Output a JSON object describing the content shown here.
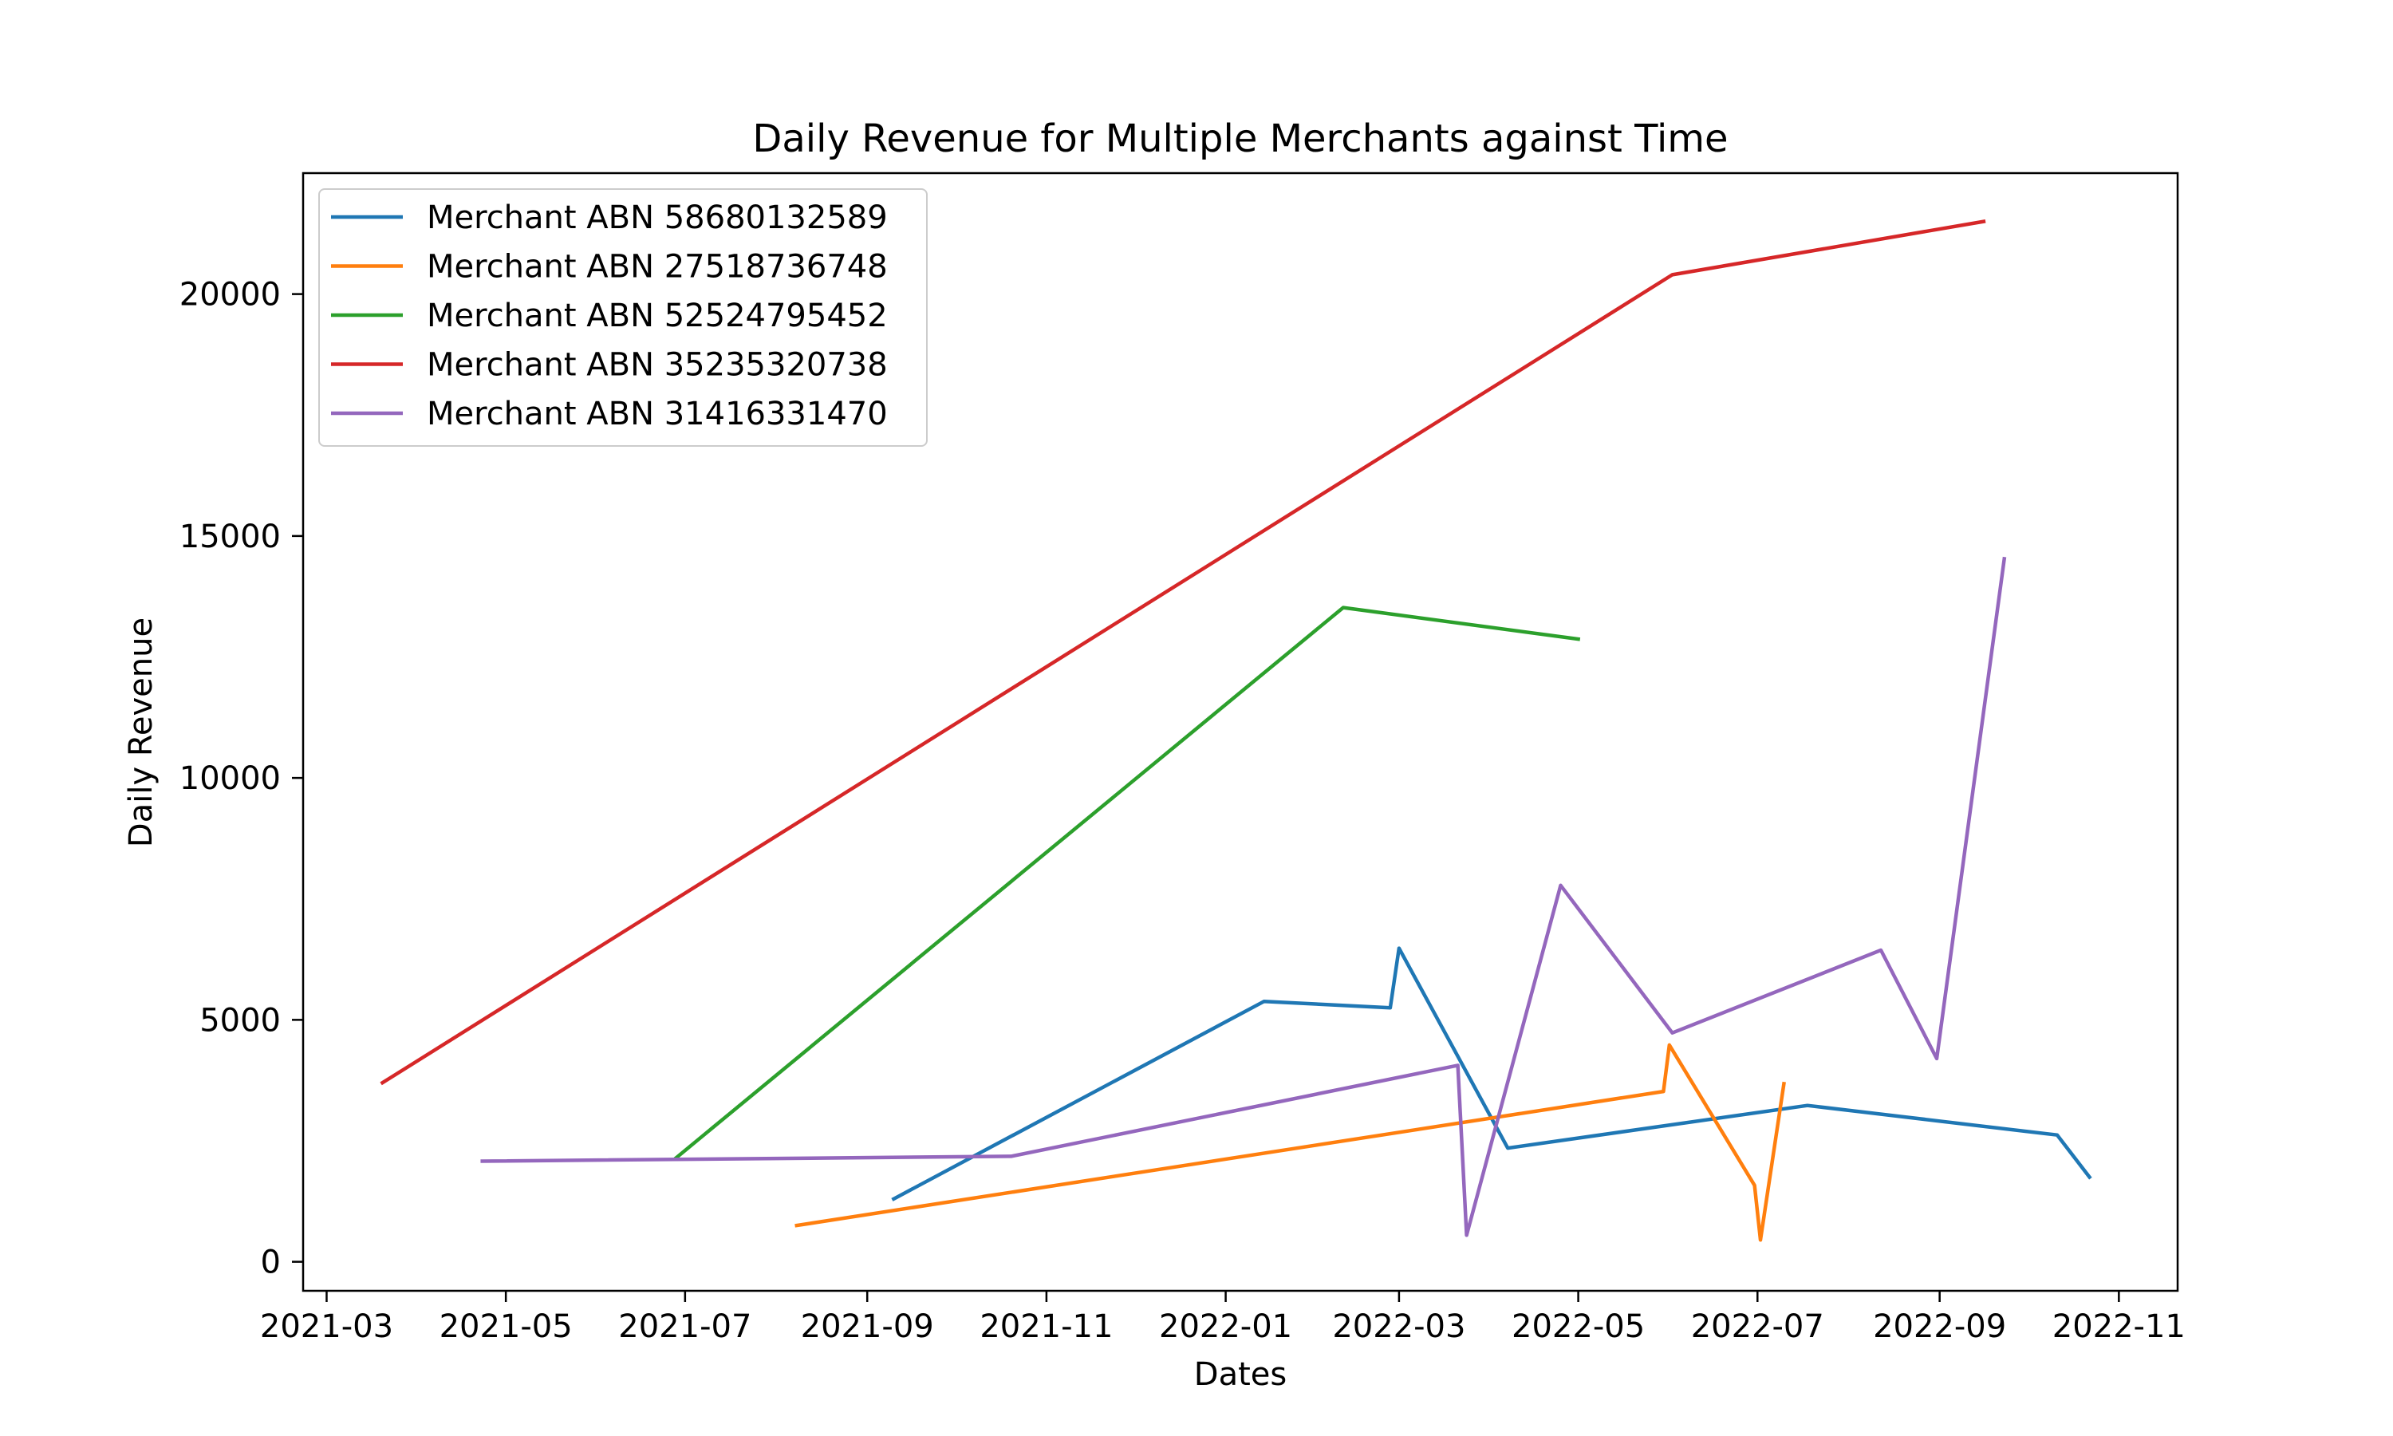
{
  "chart_data": {
    "type": "line",
    "title": "Daily Revenue for Multiple Merchants against Time",
    "xlabel": "Dates",
    "ylabel": "Daily Revenue",
    "xlim": [
      "2021-02-21",
      "2022-11-21"
    ],
    "ylim": [
      -600,
      22500
    ],
    "x_ticks": [
      "2021-03-01",
      "2021-05-01",
      "2021-07-01",
      "2021-09-01",
      "2021-11-01",
      "2022-01-01",
      "2022-03-01",
      "2022-05-01",
      "2022-07-01",
      "2022-09-01",
      "2022-11-01"
    ],
    "x_tick_labels": [
      "2021-03",
      "2021-05",
      "2021-07",
      "2021-09",
      "2021-11",
      "2022-01",
      "2022-03",
      "2022-05",
      "2022-07",
      "2022-09",
      "2022-11"
    ],
    "y_ticks": [
      0,
      5000,
      10000,
      15000,
      20000
    ],
    "y_tick_labels": [
      "0",
      "5000",
      "10000",
      "15000",
      "20000"
    ],
    "grid": false,
    "legend_position": "top-left",
    "series": [
      {
        "name": "Merchant ABN 58680132589",
        "color": "#1f77b4",
        "points": [
          [
            "2021-09-10",
            1300
          ],
          [
            "2022-01-14",
            5380
          ],
          [
            "2022-02-26",
            5250
          ],
          [
            "2022-03-01",
            6480
          ],
          [
            "2022-04-07",
            2350
          ],
          [
            "2022-07-18",
            3230
          ],
          [
            "2022-10-11",
            2620
          ],
          [
            "2022-10-22",
            1750
          ]
        ]
      },
      {
        "name": "Merchant ABN 27518736748",
        "color": "#ff7f0e",
        "points": [
          [
            "2021-08-08",
            750
          ],
          [
            "2022-05-30",
            3520
          ],
          [
            "2022-06-01",
            4480
          ],
          [
            "2022-06-30",
            1580
          ],
          [
            "2022-07-02",
            450
          ],
          [
            "2022-07-10",
            3680
          ]
        ]
      },
      {
        "name": "Merchant ABN 52524795452",
        "color": "#2ca02c",
        "points": [
          [
            "2021-06-28",
            2150
          ],
          [
            "2022-02-10",
            13520
          ],
          [
            "2022-05-01",
            12870
          ]
        ]
      },
      {
        "name": "Merchant ABN 35235320738",
        "color": "#d62728",
        "points": [
          [
            "2021-03-20",
            3700
          ],
          [
            "2022-06-02",
            20400
          ],
          [
            "2022-09-16",
            21500
          ]
        ]
      },
      {
        "name": "Merchant ABN 31416331470",
        "color": "#9467bd",
        "points": [
          [
            "2021-04-23",
            2080
          ],
          [
            "2021-10-20",
            2180
          ],
          [
            "2022-03-21",
            4060
          ],
          [
            "2022-03-24",
            550
          ],
          [
            "2022-04-25",
            7780
          ],
          [
            "2022-06-02",
            4730
          ],
          [
            "2022-08-12",
            6440
          ],
          [
            "2022-08-31",
            4200
          ],
          [
            "2022-09-23",
            14530
          ]
        ]
      }
    ]
  }
}
